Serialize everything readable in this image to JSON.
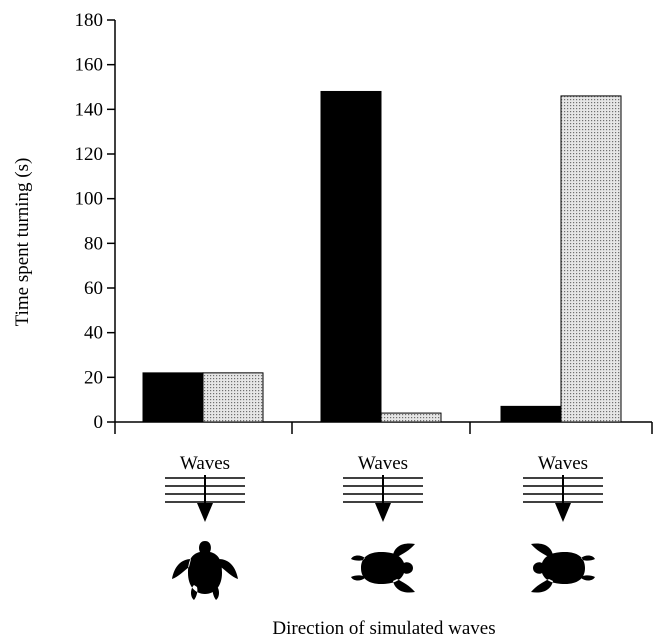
{
  "chart_data": {
    "type": "bar",
    "ylabel": "Time spent turning (s)",
    "xlabel": "Direction of simulated waves",
    "ylim": [
      0,
      180
    ],
    "yticks": [
      0,
      20,
      40,
      60,
      80,
      100,
      120,
      140,
      160,
      180
    ],
    "categories": [
      "Waves",
      "Waves",
      "Waves"
    ],
    "turtle_orientation": [
      "facing waves",
      "waves from right",
      "waves from left"
    ],
    "series": [
      {
        "values": [
          22,
          148,
          7
        ],
        "color": "#000000",
        "pattern": "solid"
      },
      {
        "values": [
          22,
          4,
          146
        ],
        "color": "#d8d8d8",
        "pattern": "stippled"
      }
    ],
    "grid": false,
    "legend": "none"
  }
}
